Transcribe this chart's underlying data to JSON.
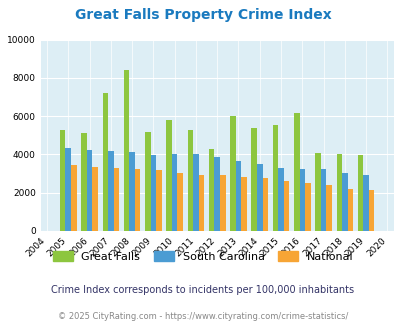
{
  "title": "Great Falls Property Crime Index",
  "years": [
    2004,
    2005,
    2006,
    2007,
    2008,
    2009,
    2010,
    2011,
    2012,
    2013,
    2014,
    2015,
    2016,
    2017,
    2018,
    2019,
    2020
  ],
  "great_falls": [
    null,
    5300,
    5100,
    7200,
    8400,
    5150,
    5800,
    5300,
    4300,
    6000,
    5400,
    5550,
    6150,
    4050,
    4000,
    3950,
    null
  ],
  "south_carolina": [
    null,
    4350,
    4250,
    4200,
    4150,
    3950,
    4000,
    4000,
    3850,
    3650,
    3500,
    3300,
    3250,
    3250,
    3050,
    2950,
    null
  ],
  "national": [
    null,
    3450,
    3350,
    3300,
    3250,
    3200,
    3050,
    2950,
    2900,
    2800,
    2750,
    2600,
    2500,
    2400,
    2200,
    2150,
    null
  ],
  "great_falls_color": "#8dc63f",
  "south_carolina_color": "#4b9cd3",
  "national_color": "#f7a535",
  "background_color": "#ddeef5",
  "ylim": [
    0,
    10000
  ],
  "yticks": [
    0,
    2000,
    4000,
    6000,
    8000,
    10000
  ],
  "subtitle": "Crime Index corresponds to incidents per 100,000 inhabitants",
  "copyright": "© 2025 CityRating.com - https://www.cityrating.com/crime-statistics/",
  "title_color": "#1a7abf",
  "subtitle_color": "#333366",
  "copyright_color": "#888888",
  "copyright_url_color": "#4488cc"
}
